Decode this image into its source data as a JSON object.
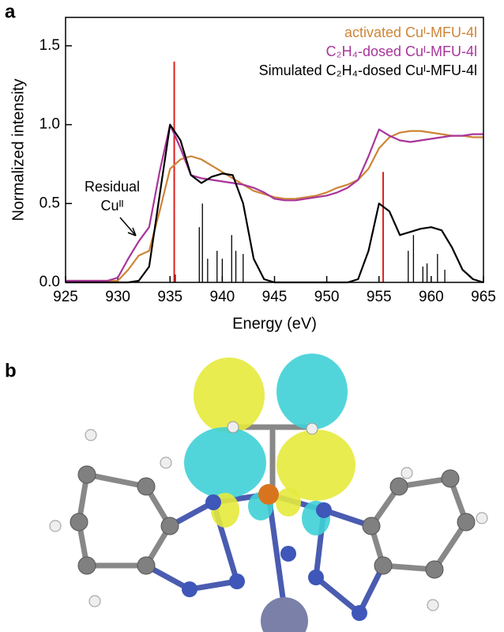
{
  "panel_labels": [
    "a",
    "b"
  ],
  "chart_data": {
    "type": "line",
    "xlabel": "Energy (eV)",
    "ylabel": "Normalized intensity",
    "annotation": [
      "Residual",
      "Cuᴵᴵ"
    ],
    "legend": "upper right",
    "x": [
      925,
      926,
      927,
      928,
      929,
      930,
      931,
      932,
      933,
      934,
      935,
      936,
      937,
      938,
      939,
      940,
      941,
      942,
      943,
      944,
      945,
      946,
      947,
      948,
      949,
      950,
      951,
      952,
      953,
      954,
      955,
      956,
      957,
      958,
      959,
      960,
      961,
      962,
      963,
      964,
      965
    ],
    "series": [
      {
        "name": "activated Cuᴵ-MFU-4l",
        "color": "#cd8537",
        "values": [
          0.01,
          0.01,
          0.01,
          0.01,
          0.01,
          0.01,
          0.08,
          0.17,
          0.2,
          0.45,
          0.72,
          0.78,
          0.8,
          0.78,
          0.74,
          0.7,
          0.66,
          0.62,
          0.58,
          0.56,
          0.54,
          0.53,
          0.53,
          0.54,
          0.55,
          0.57,
          0.6,
          0.62,
          0.65,
          0.72,
          0.85,
          0.92,
          0.95,
          0.96,
          0.96,
          0.95,
          0.94,
          0.93,
          0.93,
          0.92,
          0.92
        ]
      },
      {
        "name": "C₂H₄-dosed Cuᴵ-MFU-4l",
        "color": "#a8359a",
        "values": [
          0.01,
          0.01,
          0.01,
          0.01,
          0.01,
          0.03,
          0.15,
          0.26,
          0.35,
          0.7,
          1.0,
          0.85,
          0.68,
          0.66,
          0.65,
          0.64,
          0.63,
          0.62,
          0.6,
          0.57,
          0.53,
          0.52,
          0.52,
          0.53,
          0.54,
          0.55,
          0.57,
          0.6,
          0.65,
          0.8,
          0.97,
          0.93,
          0.9,
          0.89,
          0.9,
          0.91,
          0.92,
          0.93,
          0.93,
          0.94,
          0.94
        ]
      },
      {
        "name": "Simulated C₂H₄-dosed Cuᴵ-MFU-4l",
        "color": "#000000",
        "values": [
          0,
          0,
          0,
          0,
          0,
          0,
          0,
          0.01,
          0.1,
          0.55,
          1.0,
          0.9,
          0.68,
          0.63,
          0.67,
          0.69,
          0.68,
          0.5,
          0.15,
          0.02,
          0,
          0,
          0,
          0,
          0,
          0,
          0,
          0,
          0.02,
          0.2,
          0.5,
          0.45,
          0.3,
          0.32,
          0.34,
          0.35,
          0.33,
          0.22,
          0.08,
          0.02,
          0
        ]
      }
    ],
    "sticks": [
      {
        "color": "#000000",
        "x": [
          935.5,
          937.8,
          938.1,
          938.6,
          939.5,
          940,
          940.9,
          941.3,
          942,
          957.8,
          958.3,
          959.2,
          959.6,
          960.6,
          961.3
        ],
        "values": [
          0.05,
          0.35,
          0.5,
          0.15,
          0.2,
          0.15,
          0.3,
          0.2,
          0.18,
          0.2,
          0.3,
          0.1,
          0.12,
          0.18,
          0.08
        ]
      },
      {
        "color": "#e02020",
        "x": [
          935.4,
          955.4
        ],
        "values": [
          1.4,
          0.7
        ]
      }
    ],
    "xlim": [
      925,
      965
    ],
    "ylim": [
      0,
      1.68
    ],
    "xticks": [
      925,
      930,
      935,
      940,
      945,
      950,
      955,
      960,
      965
    ],
    "yticks": [
      {
        "value": 0,
        "label": "0.0"
      },
      0.5,
      {
        "value": 1,
        "label": "1.0"
      },
      1.5
    ]
  }
}
